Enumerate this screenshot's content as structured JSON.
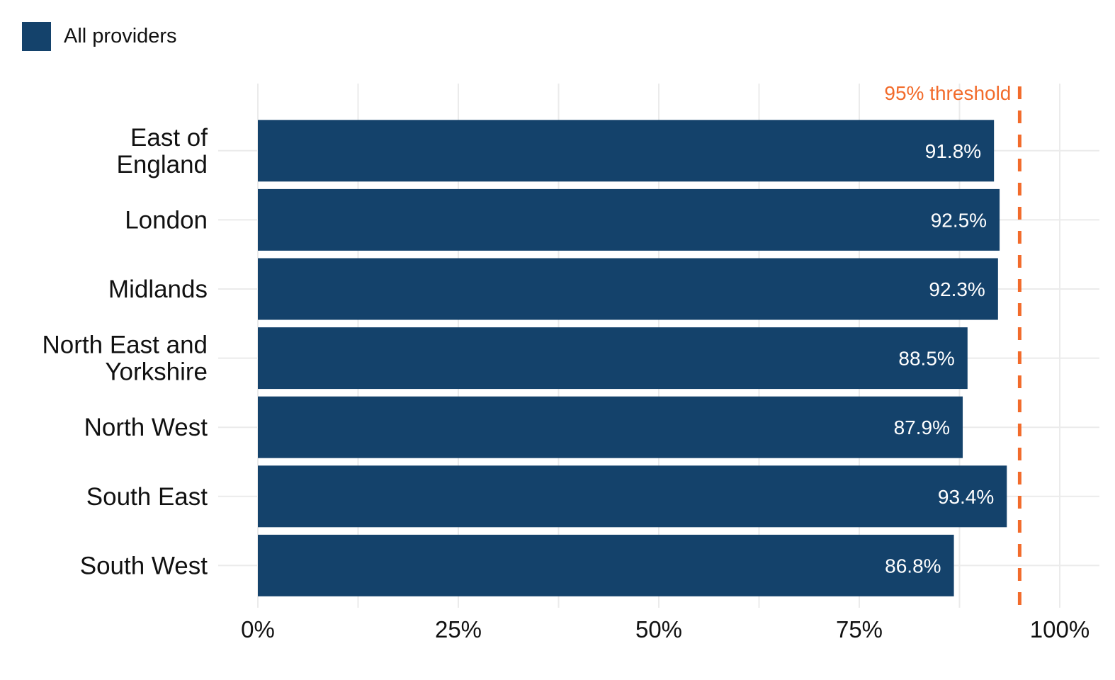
{
  "legend": {
    "label": "All providers",
    "color": "#14426b"
  },
  "chart_data": {
    "type": "bar",
    "orientation": "horizontal",
    "categories": [
      [
        "East of",
        "England"
      ],
      [
        "London"
      ],
      [
        "Midlands"
      ],
      [
        "North East and",
        "Yorkshire"
      ],
      [
        "North West"
      ],
      [
        "South East"
      ],
      [
        "South West"
      ]
    ],
    "series": [
      {
        "name": "All providers",
        "values": [
          91.8,
          92.5,
          92.3,
          88.5,
          87.9,
          93.4,
          86.8
        ],
        "labels": [
          "91.8%",
          "92.5%",
          "92.3%",
          "88.5%",
          "87.9%",
          "93.4%",
          "86.8%"
        ],
        "color": "#14426b"
      }
    ],
    "xlim": [
      0,
      100
    ],
    "xticks": [
      0,
      25,
      50,
      75,
      100
    ],
    "xtick_labels": [
      "0%",
      "25%",
      "50%",
      "75%",
      "100%"
    ],
    "reference_line": {
      "value": 95,
      "label": "95% threshold",
      "color": "#f26b2b",
      "style": "dashed"
    },
    "xlabel": "",
    "ylabel": "",
    "grid": true,
    "legend_position": "top-left"
  }
}
